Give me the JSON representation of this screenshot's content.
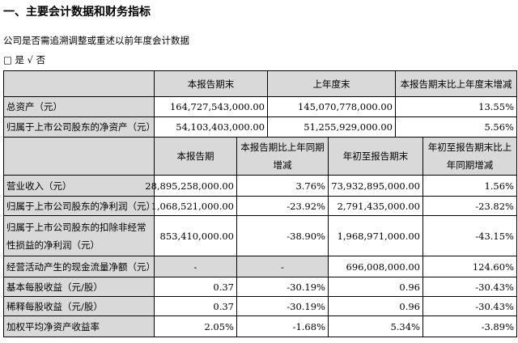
{
  "heading": "一、主要会计数据和财务指标",
  "question": "公司是否需追溯调整或重述以前年度会计数据",
  "options": "□ 是 √ 否",
  "table_top": {
    "headers": [
      "",
      "本报告期末",
      "上年度末",
      "本报告期末比上年度末增减"
    ],
    "rows": [
      [
        "总资产（元）",
        "164,727,543,000.00",
        "145,070,778,000.00",
        "13.55%"
      ],
      [
        "归属于上市公司股东的净资产（元）",
        "54,103,403,000.00",
        "51,255,929,000.00",
        "5.56%"
      ]
    ]
  },
  "table_bottom": {
    "headers": [
      "",
      "本报告期",
      "本报告期比上年同期增减",
      "年初至报告期末",
      "年初至报告期末比上年同期增减"
    ],
    "rows": [
      [
        "营业收入（元）",
        "28,895,258,000.00",
        "3.76%",
        "73,932,895,000.00",
        "1.56%"
      ],
      [
        "归属于上市公司股东的净利润（元）",
        "1,068,521,000.00",
        "-23.92%",
        "2,791,435,000.00",
        "-23.82%"
      ],
      [
        "归属于上市公司股东的扣除非经常性损益的净利润（元）",
        "853,410,000.00",
        "-38.90%",
        "1,968,971,000.00",
        "-43.15%"
      ],
      [
        "经营活动产生的现金流量净额（元）",
        "-",
        "-",
        "696,008,000.00",
        "124.60%"
      ],
      [
        "基本每股收益（元/股）",
        "0.37",
        "-30.19%",
        "0.96",
        "-30.43%"
      ],
      [
        "稀释每股收益（元/股）",
        "0.37",
        "-30.19%",
        "0.96",
        "-30.43%"
      ],
      [
        "加权平均净资产收益率",
        "2.05%",
        "-1.68%",
        "5.34%",
        "-3.89%"
      ]
    ]
  }
}
